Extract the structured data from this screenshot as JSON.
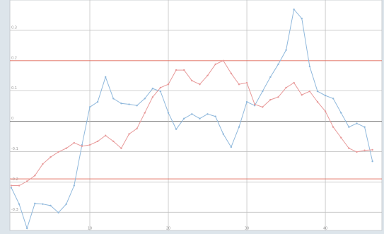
{
  "chart_data": {
    "type": "line",
    "x": [
      0,
      1,
      2,
      3,
      4,
      5,
      6,
      7,
      8,
      9,
      10,
      11,
      12,
      13,
      14,
      15,
      16,
      17,
      18,
      19,
      20,
      21,
      22,
      23,
      24,
      25,
      26,
      27,
      28,
      29,
      30,
      31,
      32,
      33,
      34,
      35,
      36,
      37,
      38,
      39,
      40,
      41,
      42,
      43,
      44,
      45,
      46
    ],
    "series": [
      {
        "name": null,
        "color": "#8fb8dc",
        "values": [
          -0.219,
          -0.273,
          -0.353,
          -0.271,
          -0.273,
          -0.278,
          -0.301,
          -0.273,
          -0.212,
          -0.078,
          0.047,
          0.064,
          0.146,
          0.075,
          0.059,
          0.056,
          0.052,
          0.075,
          0.108,
          0.099,
          0.028,
          -0.026,
          0.009,
          0.024,
          0.009,
          0.024,
          0.016,
          -0.042,
          -0.085,
          -0.019,
          0.064,
          0.052,
          0.099,
          0.146,
          0.188,
          0.235,
          0.369,
          0.339,
          0.181,
          0.099,
          0.085,
          0.075,
          0.028,
          -0.019,
          -0.007,
          -0.019,
          -0.132
        ]
      },
      {
        "name": null,
        "color": "#e89a9a",
        "values": [
          -0.212,
          -0.212,
          -0.198,
          -0.179,
          -0.141,
          -0.118,
          -0.101,
          -0.089,
          -0.071,
          -0.082,
          -0.078,
          -0.066,
          -0.047,
          -0.066,
          -0.089,
          -0.042,
          -0.024,
          0.028,
          0.08,
          0.111,
          0.122,
          0.169,
          0.169,
          0.134,
          0.122,
          0.151,
          0.188,
          0.2,
          0.158,
          0.122,
          0.127,
          0.056,
          0.047,
          0.071,
          0.08,
          0.111,
          0.127,
          0.087,
          0.099,
          0.064,
          0.033,
          -0.019,
          -0.054,
          -0.089,
          -0.101,
          -0.096,
          -0.094
        ]
      }
    ],
    "xlim": [
      -0.18,
      47.2
    ],
    "xticks": [
      10,
      20,
      30,
      40
    ],
    "ylim": [
      -0.36,
      0.4
    ],
    "yticks": [
      -0.3,
      -0.2,
      -0.1,
      0,
      0.1,
      0.2,
      0.3
    ],
    "reference_lines": [
      0.2,
      -0.19
    ],
    "reference_color": "#e06a5a",
    "grid": true
  }
}
